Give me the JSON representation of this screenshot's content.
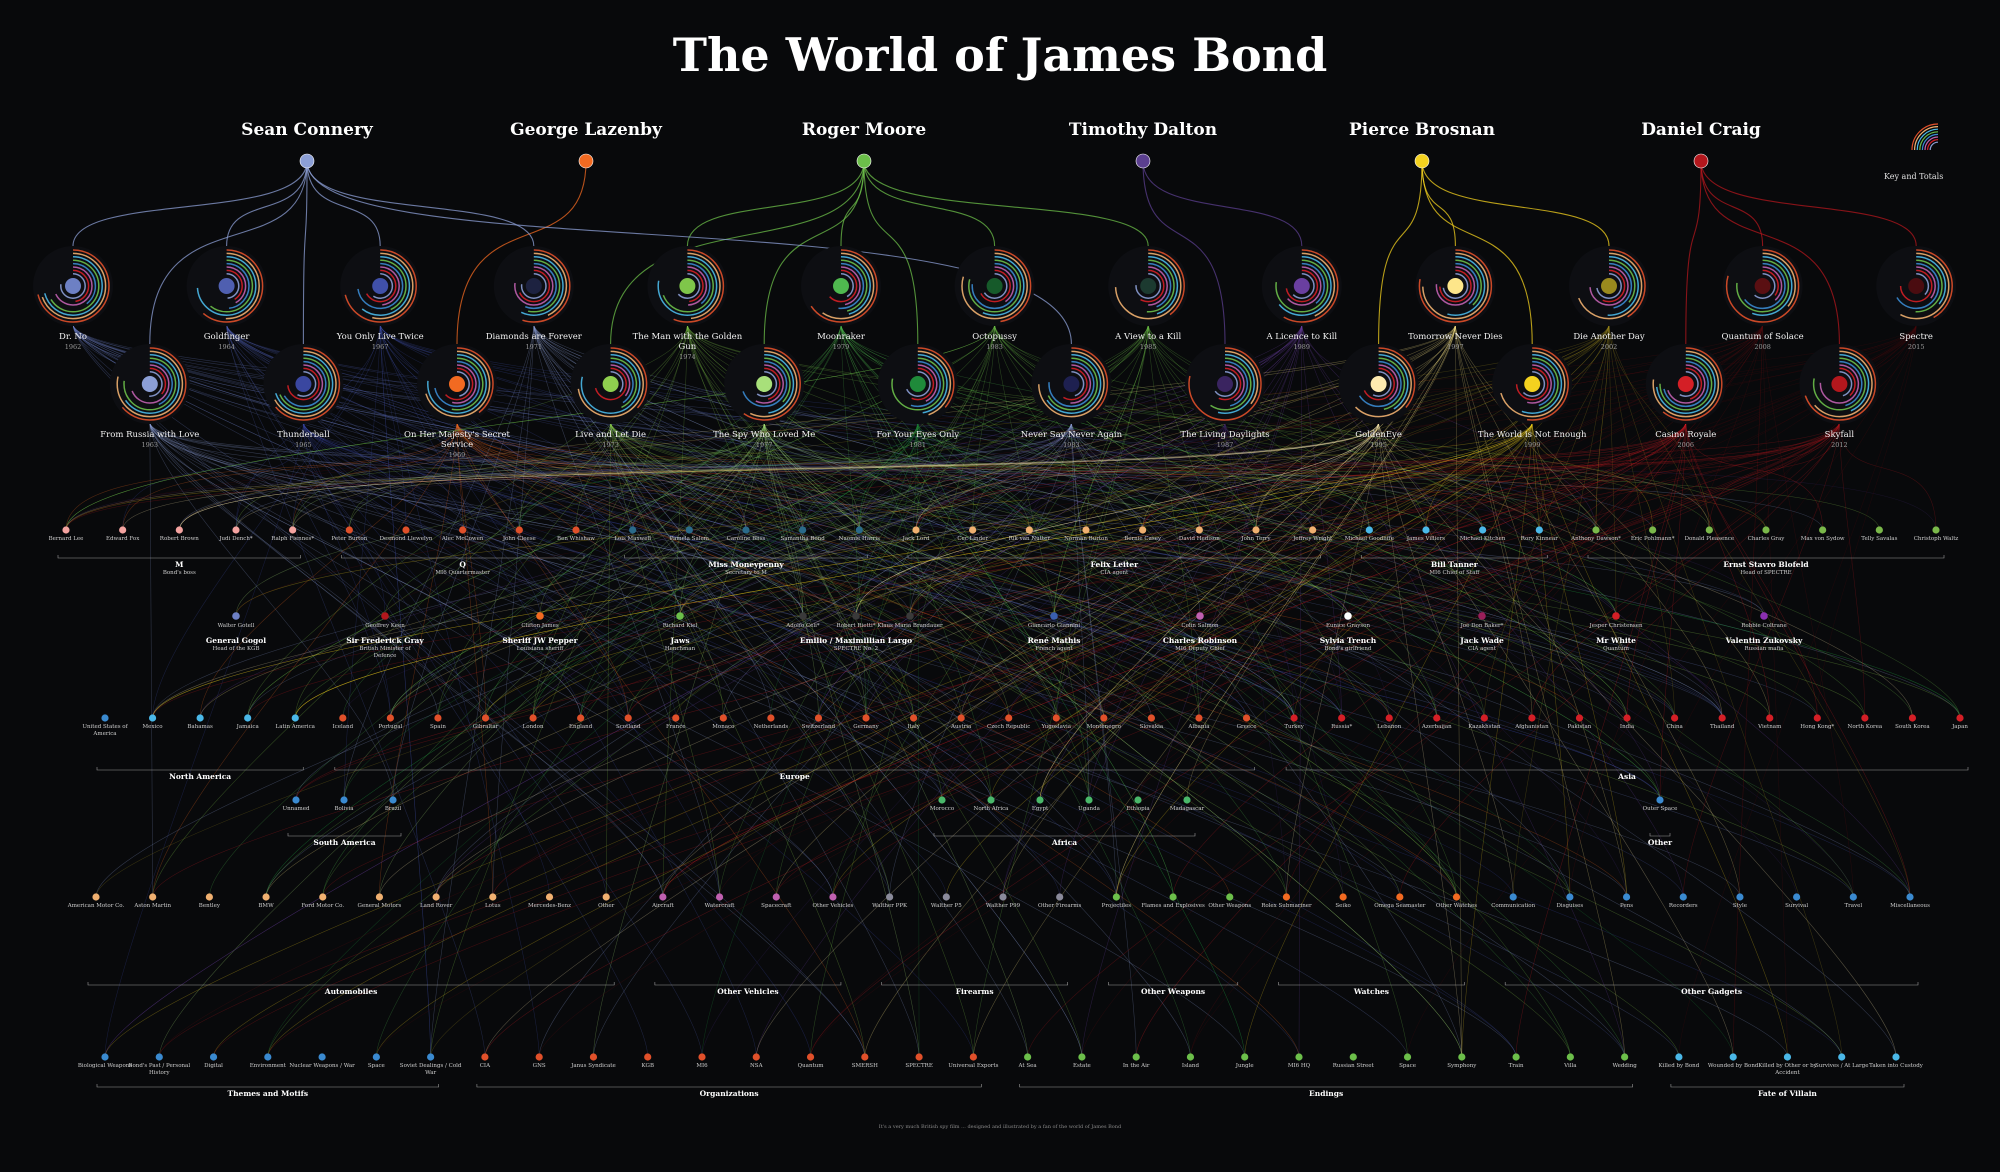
{
  "title": "The World of James Bond",
  "key_label": "Key and Totals",
  "actors": [
    {
      "name": "Sean Connery",
      "color": "#8c9fd6"
    },
    {
      "name": "George Lazenby",
      "color": "#f26a21"
    },
    {
      "name": "Roger Moore",
      "color": "#6cbf4a"
    },
    {
      "name": "Timothy Dalton",
      "color": "#5b3f8f"
    },
    {
      "name": "Pierce Brosnan",
      "color": "#f4d21f"
    },
    {
      "name": "Daniel Craig",
      "color": "#b3171d"
    }
  ],
  "films": [
    {
      "title": "Dr. No",
      "year": "1962",
      "actor": 0,
      "color": "#6d80c4"
    },
    {
      "title": "From Russia with Love",
      "year": "1963",
      "actor": 0,
      "color": "#8c9fd6"
    },
    {
      "title": "Goldfinger",
      "year": "1964",
      "actor": 0,
      "color": "#4f5fb0"
    },
    {
      "title": "Thunderball",
      "year": "1965",
      "actor": 0,
      "color": "#3a47a0"
    },
    {
      "title": "You Only Live Twice",
      "year": "1967",
      "actor": 0,
      "color": "#4050a8"
    },
    {
      "title": "On Her Majesty's Secret Service",
      "year": "1969",
      "actor": 1,
      "color": "#f26a21"
    },
    {
      "title": "Diamonds are Forever",
      "year": "1971",
      "actor": 0,
      "color": "#1d2240"
    },
    {
      "title": "Live and Let Die",
      "year": "1973",
      "actor": 2,
      "color": "#8fd04f"
    },
    {
      "title": "The Man with the Golden Gun",
      "year": "1974",
      "actor": 2,
      "color": "#7fc64a"
    },
    {
      "title": "The Spy Who Loved Me",
      "year": "1977",
      "actor": 2,
      "color": "#a8e07a"
    },
    {
      "title": "Moonraker",
      "year": "1979",
      "actor": 2,
      "color": "#4fb84f"
    },
    {
      "title": "For Your Eyes Only",
      "year": "1981",
      "actor": 2,
      "color": "#1f8a3a"
    },
    {
      "title": "Octopussy",
      "year": "1983",
      "actor": 2,
      "color": "#165a2a"
    },
    {
      "title": "Never Say Never Again",
      "year": "1983",
      "actor": 0,
      "color": "#1e2050"
    },
    {
      "title": "A View to a Kill",
      "year": "1985",
      "actor": 2,
      "color": "#1c3a30"
    },
    {
      "title": "The Living Daylights",
      "year": "1987",
      "actor": 3,
      "color": "#3a2460"
    },
    {
      "title": "A Licence to Kill",
      "year": "1989",
      "actor": 3,
      "color": "#6a3fa0"
    },
    {
      "title": "GoldenEye",
      "year": "1995",
      "actor": 4,
      "color": "#fdeab0"
    },
    {
      "title": "Tomorrow Never Dies",
      "year": "1997",
      "actor": 4,
      "color": "#fde68a"
    },
    {
      "title": "The World is Not Enough",
      "year": "1999",
      "actor": 4,
      "color": "#f4d21f"
    },
    {
      "title": "Die Another Day",
      "year": "2002",
      "actor": 4,
      "color": "#9a8a1e"
    },
    {
      "title": "Casino Royale",
      "year": "2006",
      "actor": 5,
      "color": "#d41f26"
    },
    {
      "title": "Quantum of Solace",
      "year": "2008",
      "actor": 5,
      "color": "#5a0f12"
    },
    {
      "title": "Skyfall",
      "year": "2012",
      "actor": 5,
      "color": "#b3171d"
    },
    {
      "title": "Spectre",
      "year": "2015",
      "actor": 5,
      "color": "#4a0c10"
    }
  ],
  "allies": [
    {
      "name": "Bernard Lee",
      "color": "#f4a3a0"
    },
    {
      "name": "Edward Fox",
      "color": "#f4a3a0"
    },
    {
      "name": "Robert Brown",
      "color": "#f4a3a0"
    },
    {
      "name": "Judi Dench*",
      "color": "#f4a3a0"
    },
    {
      "name": "Ralph Fiennes*",
      "color": "#f4a3a0"
    },
    {
      "name": "Peter Burton",
      "color": "#e0502a"
    },
    {
      "name": "Desmond Llewelyn",
      "color": "#e0502a"
    },
    {
      "name": "Alec McCowen",
      "color": "#e0502a"
    },
    {
      "name": "John Cleese",
      "color": "#e0502a"
    },
    {
      "name": "Ben Whishaw",
      "color": "#e0502a"
    },
    {
      "name": "Lois Maxwell",
      "color": "#2a6a8a"
    },
    {
      "name": "Pamela Salem",
      "color": "#2a6a8a"
    },
    {
      "name": "Caroline Bliss",
      "color": "#2a6a8a"
    },
    {
      "name": "Samantha Bond",
      "color": "#2a6a8a"
    },
    {
      "name": "Naomie Harris",
      "color": "#2a6a8a"
    },
    {
      "name": "Jack Lord",
      "color": "#f0b070"
    },
    {
      "name": "Cec Linder",
      "color": "#f0b070"
    },
    {
      "name": "Rik van Nutter",
      "color": "#f0b070"
    },
    {
      "name": "Norman Burton",
      "color": "#f0b070"
    },
    {
      "name": "Bernie Casey",
      "color": "#f0b070"
    },
    {
      "name": "David Hedison",
      "color": "#f0b070"
    },
    {
      "name": "John Terry",
      "color": "#f0b070"
    },
    {
      "name": "Jeffrey Wright",
      "color": "#f0b070"
    },
    {
      "name": "Michael Goodliffe",
      "color": "#4ab8e8"
    },
    {
      "name": "James Villiers",
      "color": "#4ab8e8"
    },
    {
      "name": "Michael Kitchen",
      "color": "#4ab8e8"
    },
    {
      "name": "Rory Kinnear",
      "color": "#4ab8e8"
    },
    {
      "name": "Anthony Dawson*",
      "color": "#7ab84a"
    },
    {
      "name": "Eric Pohlmann*",
      "color": "#7ab84a"
    },
    {
      "name": "Donald Pleasence",
      "color": "#7ab84a"
    },
    {
      "name": "Charles Gray",
      "color": "#7ab84a"
    },
    {
      "name": "Max von Sydow",
      "color": "#7ab84a"
    },
    {
      "name": "Telly Savalas",
      "color": "#7ab84a"
    },
    {
      "name": "Christoph Waltz",
      "color": "#7ab84a"
    }
  ],
  "ally_groups": [
    {
      "name": "M",
      "sub": "Bond's boss"
    },
    {
      "name": "Q",
      "sub": "MI6 Quartermaster"
    },
    {
      "name": "Miss Moneypenny",
      "sub": "Secretary to M"
    },
    {
      "name": "Felix Leiter",
      "sub": "CIA agent"
    },
    {
      "name": "Bill Tanner",
      "sub": "MI6 Chief of Staff"
    },
    {
      "name": "Ernst Stavro Blofeld",
      "sub": "Head of SPECTRE"
    }
  ],
  "characters": [
    {
      "actor": "Walter Gotell",
      "name": "General Gogol",
      "sub": "Head of the KGB",
      "color": "#6d80c4"
    },
    {
      "actor": "Geoffrey Keen",
      "name": "Sir Frederick Gray",
      "sub": "British Minister of Defence",
      "color": "#b3171d"
    },
    {
      "actor": "Clifton James",
      "name": "Sheriff JW Pepper",
      "sub": "Louisiana sheriff",
      "color": "#f26a21"
    },
    {
      "actor": "Richard Kiel",
      "name": "Jaws",
      "sub": "Henchman",
      "color": "#6cbf4a"
    },
    {
      "actor": "Adolfo Celi*",
      "name": "",
      "sub": "",
      "color": "#3a3a3a"
    },
    {
      "actor": "Robert Rietti*",
      "name": "Emilio / Maximillian Largo",
      "sub": "SPECTRE No. 2",
      "color": "#3a3a3a"
    },
    {
      "actor": "Klaus Maria Brandauer",
      "name": "",
      "sub": "",
      "color": "#3a3a3a"
    },
    {
      "actor": "Giancarlo Giannini",
      "name": "René Mathis",
      "sub": "French agent",
      "color": "#3a5fb0"
    },
    {
      "actor": "Colin Salmon",
      "name": "Charles Robinson",
      "sub": "MI6 Deputy Chief",
      "color": "#c060b0"
    },
    {
      "actor": "Eunice Grayson",
      "name": "Sylvia Trench",
      "sub": "Bond's girlfriend",
      "color": "#ffffff"
    },
    {
      "actor": "Joe Don Baker*",
      "name": "Jack Wade",
      "sub": "CIA agent",
      "color": "#9a1f5a"
    },
    {
      "actor": "Jesper Christensen",
      "name": "Mr White",
      "sub": "Quantum",
      "color": "#d41f26"
    },
    {
      "actor": "Robbie Coltrane",
      "name": "Valentin Zukovsky",
      "sub": "Russian mafia",
      "color": "#8a2fb0"
    }
  ],
  "locations": [
    {
      "name": "United States of America",
      "color": "#3a8ad0"
    },
    {
      "name": "Mexico",
      "color": "#4ab8e8"
    },
    {
      "name": "Bahamas",
      "color": "#4ab8e8"
    },
    {
      "name": "Jamaica",
      "color": "#4ab8e8"
    },
    {
      "name": "Latin America",
      "color": "#4ab8e8"
    },
    {
      "name": "Iceland",
      "color": "#e0502a"
    },
    {
      "name": "Portugal",
      "color": "#e0502a"
    },
    {
      "name": "Spain",
      "color": "#e0502a"
    },
    {
      "name": "Gibraltar",
      "color": "#e0502a"
    },
    {
      "name": "London",
      "color": "#e0502a"
    },
    {
      "name": "England",
      "color": "#e0502a"
    },
    {
      "name": "Scotland",
      "color": "#e0502a"
    },
    {
      "name": "France",
      "color": "#e0502a"
    },
    {
      "name": "Monaco",
      "color": "#e0502a"
    },
    {
      "name": "Netherlands",
      "color": "#e0502a"
    },
    {
      "name": "Switzerland",
      "color": "#e0502a"
    },
    {
      "name": "Germany",
      "color": "#e0502a"
    },
    {
      "name": "Italy",
      "color": "#e0502a"
    },
    {
      "name": "Austria",
      "color": "#e0502a"
    },
    {
      "name": "Czech Republic",
      "color": "#e0502a"
    },
    {
      "name": "Yugoslavia",
      "color": "#e0502a"
    },
    {
      "name": "Montenegro",
      "color": "#e0502a"
    },
    {
      "name": "Slovakia",
      "color": "#e0502a"
    },
    {
      "name": "Albania",
      "color": "#e0502a"
    },
    {
      "name": "Greece",
      "color": "#e0502a"
    },
    {
      "name": "Turkey",
      "color": "#d41f26"
    },
    {
      "name": "Russia*",
      "color": "#d41f26"
    },
    {
      "name": "Lebanon",
      "color": "#d41f26"
    },
    {
      "name": "Azerbaijan",
      "color": "#d41f26"
    },
    {
      "name": "Kazakhstan",
      "color": "#d41f26"
    },
    {
      "name": "Afghanistan",
      "color": "#d41f26"
    },
    {
      "name": "Pakistan",
      "color": "#d41f26"
    },
    {
      "name": "India",
      "color": "#d41f26"
    },
    {
      "name": "China",
      "color": "#d41f26"
    },
    {
      "name": "Thailand",
      "color": "#d41f26"
    },
    {
      "name": "Vietnam",
      "color": "#d41f26"
    },
    {
      "name": "Hong Kong*",
      "color": "#d41f26"
    },
    {
      "name": "North Korea",
      "color": "#d41f26"
    },
    {
      "name": "South Korea",
      "color": "#d41f26"
    },
    {
      "name": "Japan",
      "color": "#d41f26"
    }
  ],
  "locations2": [
    {
      "name": "Unnamed",
      "color": "#3a8ad0"
    },
    {
      "name": "Bolivia",
      "color": "#3a8ad0"
    },
    {
      "name": "Brazil",
      "color": "#3a8ad0"
    },
    {
      "name": "Morocco",
      "color": "#4ab86a"
    },
    {
      "name": "North Africa",
      "color": "#4ab86a"
    },
    {
      "name": "Egypt",
      "color": "#4ab86a"
    },
    {
      "name": "Uganda",
      "color": "#4ab86a"
    },
    {
      "name": "Ethiopia",
      "color": "#4ab86a"
    },
    {
      "name": "Madagascar",
      "color": "#4ab86a"
    },
    {
      "name": "Outer Space",
      "color": "#3a8ad0"
    }
  ],
  "region_groups": [
    "North America",
    "Europe",
    "Asia",
    "South America",
    "Africa",
    "Other"
  ],
  "objects": [
    {
      "name": "American Motor Co.",
      "color": "#f0b070"
    },
    {
      "name": "Aston Martin",
      "color": "#f0b070"
    },
    {
      "name": "Bentley",
      "color": "#f0b070"
    },
    {
      "name": "BMW",
      "color": "#f0b070"
    },
    {
      "name": "Ford Motor Co.",
      "color": "#f0b070"
    },
    {
      "name": "General Motors",
      "color": "#f0b070"
    },
    {
      "name": "Land Rover",
      "color": "#f0b070"
    },
    {
      "name": "Lotus",
      "color": "#f0b070"
    },
    {
      "name": "Mercedes-Benz",
      "color": "#f0b070"
    },
    {
      "name": "Other",
      "color": "#f0b070"
    },
    {
      "name": "Aircraft",
      "color": "#c060b0"
    },
    {
      "name": "Watercraft",
      "color": "#c060b0"
    },
    {
      "name": "Spacecraft",
      "color": "#c060b0"
    },
    {
      "name": "Other Vehicles",
      "color": "#c060b0"
    },
    {
      "name": "Walther PPK",
      "color": "#8a8a9a"
    },
    {
      "name": "Walther P5",
      "color": "#8a8a9a"
    },
    {
      "name": "Walther P99",
      "color": "#8a8a9a"
    },
    {
      "name": "Other Firearms",
      "color": "#8a8a9a"
    },
    {
      "name": "Projectiles",
      "color": "#6cbf4a"
    },
    {
      "name": "Flames and Explosives",
      "color": "#6cbf4a"
    },
    {
      "name": "Other Weapons",
      "color": "#6cbf4a"
    },
    {
      "name": "Rolex Submariner",
      "color": "#f26a21"
    },
    {
      "name": "Seiko",
      "color": "#f26a21"
    },
    {
      "name": "Omega Seamaster",
      "color": "#f26a21"
    },
    {
      "name": "Other Watches",
      "color": "#f26a21"
    },
    {
      "name": "Communication",
      "color": "#3a8ad0"
    },
    {
      "name": "Disguises",
      "color": "#3a8ad0"
    },
    {
      "name": "Pens",
      "color": "#3a8ad0"
    },
    {
      "name": "Recorders",
      "color": "#3a8ad0"
    },
    {
      "name": "Style",
      "color": "#3a8ad0"
    },
    {
      "name": "Survival",
      "color": "#3a8ad0"
    },
    {
      "name": "Travel",
      "color": "#3a8ad0"
    },
    {
      "name": "Miscellaneous",
      "color": "#3a8ad0"
    }
  ],
  "object_groups": [
    "Automobiles",
    "Other Vehicles",
    "Firearms",
    "Other Weapons",
    "Watches",
    "Other Gadgets"
  ],
  "themes": [
    {
      "name": "Biological Weapons",
      "color": "#3a8ad0"
    },
    {
      "name": "Bond's Past / Personal History",
      "color": "#3a8ad0"
    },
    {
      "name": "Digital",
      "color": "#3a8ad0"
    },
    {
      "name": "Environment",
      "color": "#3a8ad0"
    },
    {
      "name": "Nuclear Weapons / War",
      "color": "#3a8ad0"
    },
    {
      "name": "Space",
      "color": "#3a8ad0"
    },
    {
      "name": "Soviet Dealings / Cold War",
      "color": "#3a8ad0"
    },
    {
      "name": "CIA",
      "color": "#e0502a"
    },
    {
      "name": "GNS",
      "color": "#e0502a"
    },
    {
      "name": "Janus Syndicate",
      "color": "#e0502a"
    },
    {
      "name": "KGB",
      "color": "#e0502a"
    },
    {
      "name": "MI6",
      "color": "#e0502a"
    },
    {
      "name": "NSA",
      "color": "#e0502a"
    },
    {
      "name": "Quantum",
      "color": "#e0502a"
    },
    {
      "name": "SMERSH",
      "color": "#e0502a"
    },
    {
      "name": "SPECTRE",
      "color": "#e0502a"
    },
    {
      "name": "Universal Exports",
      "color": "#e0502a"
    },
    {
      "name": "At Sea",
      "color": "#6cbf4a"
    },
    {
      "name": "Estate",
      "color": "#6cbf4a"
    },
    {
      "name": "In the Air",
      "color": "#6cbf4a"
    },
    {
      "name": "Island",
      "color": "#6cbf4a"
    },
    {
      "name": "Jungle",
      "color": "#6cbf4a"
    },
    {
      "name": "MI6 HQ",
      "color": "#6cbf4a"
    },
    {
      "name": "Russian Street",
      "color": "#6cbf4a"
    },
    {
      "name": "Space",
      "color": "#6cbf4a"
    },
    {
      "name": "Symphony",
      "color": "#6cbf4a"
    },
    {
      "name": "Train",
      "color": "#6cbf4a"
    },
    {
      "name": "Villa",
      "color": "#6cbf4a"
    },
    {
      "name": "Wedding",
      "color": "#6cbf4a"
    },
    {
      "name": "Killed by Bond",
      "color": "#4ab8e8"
    },
    {
      "name": "Wounded by Bond",
      "color": "#4ab8e8"
    },
    {
      "name": "Killed by Other or by Accident",
      "color": "#4ab8e8"
    },
    {
      "name": "Survives / At Large",
      "color": "#4ab8e8"
    },
    {
      "name": "Taken into Custody",
      "color": "#4ab8e8"
    }
  ],
  "theme_groups": [
    "Themes and Motifs",
    "Organizations",
    "Endings",
    "Fate of Villain"
  ],
  "footer": "It's a very much British spy film ... designed and illustrated by a fan of the world of James Bond"
}
